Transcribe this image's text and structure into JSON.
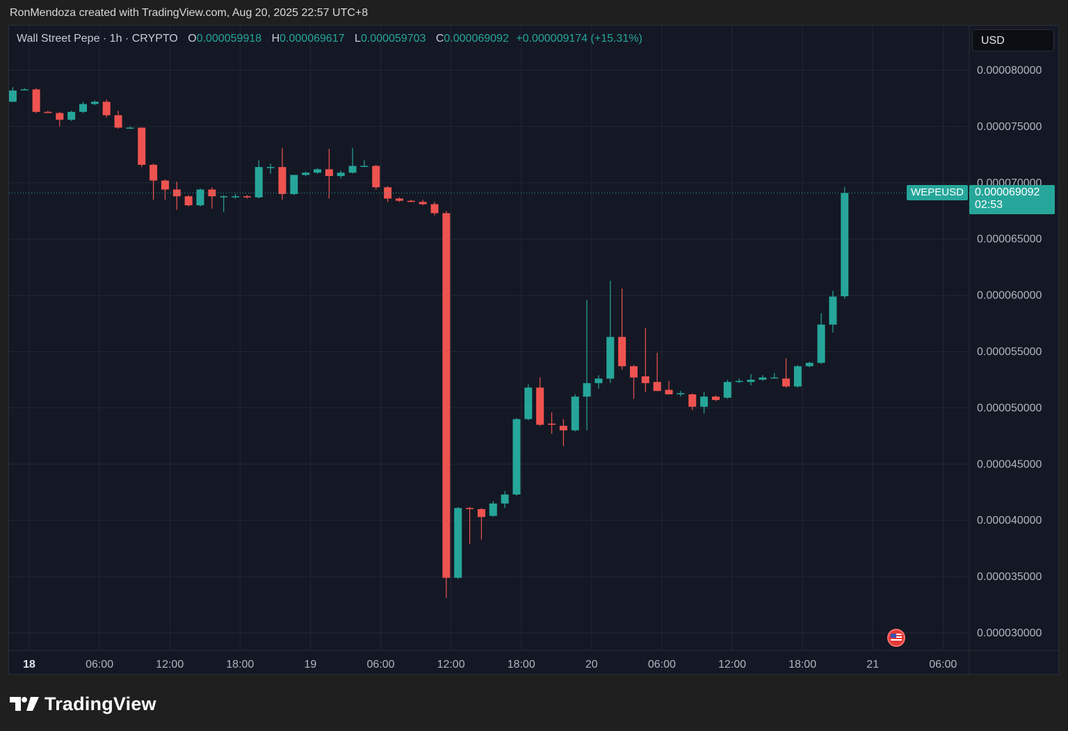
{
  "credit": "RonMendoza created with TradingView.com, Aug 20, 2025 22:57 UTC+8",
  "legend": {
    "symbol_text": "Wall Street Pepe · 1h · CRYPTO",
    "open_label": "O",
    "open": "0.000059918",
    "high_label": "H",
    "high": "0.000069617",
    "low_label": "L",
    "low": "0.000059703",
    "close_label": "C",
    "close": "0.000069092",
    "change": "+0.000009174 (+15.31%)"
  },
  "currency": "USD",
  "last_price": {
    "symbol": "WEPEUSD",
    "price": "0.000069092",
    "countdown": "02:53",
    "value": 6.9092e-05
  },
  "brand": "TradingView",
  "chart_data": {
    "type": "candlestick",
    "interval": "1h",
    "colors": {
      "up": "#26a69a",
      "down": "#ef5350",
      "background": "#141824",
      "grid": "#232734",
      "text": "#b2b5be"
    },
    "y_ticks": [
      3e-05,
      3.5e-05,
      4e-05,
      4.5e-05,
      5e-05,
      5.5e-05,
      6e-05,
      6.5e-05,
      7e-05,
      7.5e-05,
      8e-05
    ],
    "y_tick_labels": [
      "0.000030000",
      "0.000035000",
      "0.000040000",
      "0.000045000",
      "0.000050000",
      "0.000055000",
      "0.000060000",
      "0.000065000",
      "0.000070000",
      "0.000075000",
      "0.000080000"
    ],
    "ylim": [
      2.85e-05,
      8.38e-05
    ],
    "x_ticks": [
      {
        "label": "18",
        "hour": 0,
        "bold": true
      },
      {
        "label": "06:00",
        "hour": 6
      },
      {
        "label": "12:00",
        "hour": 12
      },
      {
        "label": "18:00",
        "hour": 18
      },
      {
        "label": "19",
        "hour": 24
      },
      {
        "label": "06:00",
        "hour": 30
      },
      {
        "label": "12:00",
        "hour": 36
      },
      {
        "label": "18:00",
        "hour": 42
      },
      {
        "label": "20",
        "hour": 48
      },
      {
        "label": "06:00",
        "hour": 54
      },
      {
        "label": "12:00",
        "hour": 60
      },
      {
        "label": "18:00",
        "hour": 66
      },
      {
        "label": "21",
        "hour": 72
      },
      {
        "label": "06:00",
        "hour": 78
      }
    ],
    "candles": [
      {
        "t": -1.4,
        "o": 7.72e-05,
        "h": 7.85e-05,
        "l": 7.72e-05,
        "c": 7.82e-05
      },
      {
        "t": -0.4,
        "o": 7.83e-05,
        "h": 7.84e-05,
        "l": 7.82e-05,
        "c": 7.83e-05
      },
      {
        "t": 0.6,
        "o": 7.83e-05,
        "h": 7.84e-05,
        "l": 7.62e-05,
        "c": 7.63e-05
      },
      {
        "t": 1.6,
        "o": 7.63e-05,
        "h": 7.64e-05,
        "l": 7.62e-05,
        "c": 7.62e-05
      },
      {
        "t": 2.6,
        "o": 7.62e-05,
        "h": 7.63e-05,
        "l": 7.5e-05,
        "c": 7.56e-05
      },
      {
        "t": 3.6,
        "o": 7.56e-05,
        "h": 7.64e-05,
        "l": 7.55e-05,
        "c": 7.63e-05
      },
      {
        "t": 4.6,
        "o": 7.63e-05,
        "h": 7.72e-05,
        "l": 7.62e-05,
        "c": 7.7e-05
      },
      {
        "t": 5.6,
        "o": 7.7e-05,
        "h": 7.73e-05,
        "l": 7.69e-05,
        "c": 7.72e-05
      },
      {
        "t": 6.6,
        "o": 7.72e-05,
        "h": 7.74e-05,
        "l": 7.58e-05,
        "c": 7.6e-05
      },
      {
        "t": 7.6,
        "o": 7.6e-05,
        "h": 7.64e-05,
        "l": 7.48e-05,
        "c": 7.49e-05
      },
      {
        "t": 8.6,
        "o": 7.49e-05,
        "h": 7.5e-05,
        "l": 7.48e-05,
        "c": 7.49e-05
      },
      {
        "t": 9.6,
        "o": 7.49e-05,
        "h": 7.49e-05,
        "l": 7.14e-05,
        "c": 7.16e-05
      },
      {
        "t": 10.6,
        "o": 7.16e-05,
        "h": 7.17e-05,
        "l": 6.85e-05,
        "c": 7.02e-05
      },
      {
        "t": 11.6,
        "o": 7.02e-05,
        "h": 7.03e-05,
        "l": 6.85e-05,
        "c": 6.94e-05
      },
      {
        "t": 12.6,
        "o": 6.94e-05,
        "h": 7.01e-05,
        "l": 6.76e-05,
        "c": 6.88e-05
      },
      {
        "t": 13.6,
        "o": 6.88e-05,
        "h": 6.89e-05,
        "l": 6.79e-05,
        "c": 6.8e-05
      },
      {
        "t": 14.6,
        "o": 6.8e-05,
        "h": 6.95e-05,
        "l": 6.79e-05,
        "c": 6.94e-05
      },
      {
        "t": 15.6,
        "o": 6.94e-05,
        "h": 6.96e-05,
        "l": 6.77e-05,
        "c": 6.88e-05
      },
      {
        "t": 16.6,
        "o": 6.88e-05,
        "h": 6.89e-05,
        "l": 6.74e-05,
        "c": 6.88e-05
      },
      {
        "t": 17.6,
        "o": 6.88e-05,
        "h": 6.9e-05,
        "l": 6.86e-05,
        "c": 6.88e-05
      },
      {
        "t": 18.6,
        "o": 6.88e-05,
        "h": 6.89e-05,
        "l": 6.86e-05,
        "c": 6.87e-05
      },
      {
        "t": 19.6,
        "o": 6.87e-05,
        "h": 7.2e-05,
        "l": 6.86e-05,
        "c": 7.14e-05
      },
      {
        "t": 20.6,
        "o": 7.14e-05,
        "h": 7.17e-05,
        "l": 7.08e-05,
        "c": 7.14e-05
      },
      {
        "t": 21.6,
        "o": 7.14e-05,
        "h": 7.31e-05,
        "l": 6.85e-05,
        "c": 6.9e-05
      },
      {
        "t": 22.6,
        "o": 6.9e-05,
        "h": 7.07e-05,
        "l": 6.89e-05,
        "c": 7.07e-05
      },
      {
        "t": 23.6,
        "o": 7.07e-05,
        "h": 7.1e-05,
        "l": 7.06e-05,
        "c": 7.09e-05
      },
      {
        "t": 24.6,
        "o": 7.09e-05,
        "h": 7.13e-05,
        "l": 7.08e-05,
        "c": 7.12e-05
      },
      {
        "t": 25.6,
        "o": 7.12e-05,
        "h": 7.3e-05,
        "l": 6.86e-05,
        "c": 7.06e-05
      },
      {
        "t": 26.6,
        "o": 7.06e-05,
        "h": 7.11e-05,
        "l": 7.04e-05,
        "c": 7.09e-05
      },
      {
        "t": 27.6,
        "o": 7.09e-05,
        "h": 7.31e-05,
        "l": 7.08e-05,
        "c": 7.15e-05
      },
      {
        "t": 28.6,
        "o": 7.15e-05,
        "h": 7.2e-05,
        "l": 7.14e-05,
        "c": 7.15e-05
      },
      {
        "t": 29.6,
        "o": 7.15e-05,
        "h": 7.16e-05,
        "l": 6.94e-05,
        "c": 6.96e-05
      },
      {
        "t": 30.6,
        "o": 6.96e-05,
        "h": 6.97e-05,
        "l": 6.83e-05,
        "c": 6.86e-05
      },
      {
        "t": 31.6,
        "o": 6.86e-05,
        "h": 6.87e-05,
        "l": 6.83e-05,
        "c": 6.84e-05
      },
      {
        "t": 32.6,
        "o": 6.84e-05,
        "h": 6.85e-05,
        "l": 6.83e-05,
        "c": 6.83e-05
      },
      {
        "t": 33.6,
        "o": 6.83e-05,
        "h": 6.85e-05,
        "l": 6.8e-05,
        "c": 6.81e-05
      },
      {
        "t": 34.6,
        "o": 6.81e-05,
        "h": 6.83e-05,
        "l": 6.71e-05,
        "c": 6.73e-05
      },
      {
        "t": 35.6,
        "o": 6.73e-05,
        "h": 6.75e-05,
        "l": 3.31e-05,
        "c": 3.49e-05
      },
      {
        "t": 36.6,
        "o": 3.49e-05,
        "h": 4.12e-05,
        "l": 3.48e-05,
        "c": 4.11e-05
      },
      {
        "t": 37.6,
        "o": 4.11e-05,
        "h": 4.12e-05,
        "l": 3.79e-05,
        "c": 4.1e-05
      },
      {
        "t": 38.6,
        "o": 4.1e-05,
        "h": 4.11e-05,
        "l": 3.83e-05,
        "c": 4.03e-05
      },
      {
        "t": 39.6,
        "o": 4.04e-05,
        "h": 4.17e-05,
        "l": 4.03e-05,
        "c": 4.15e-05
      },
      {
        "t": 40.6,
        "o": 4.15e-05,
        "h": 4.26e-05,
        "l": 4.11e-05,
        "c": 4.23e-05
      },
      {
        "t": 41.6,
        "o": 4.23e-05,
        "h": 4.91e-05,
        "l": 4.22e-05,
        "c": 4.9e-05
      },
      {
        "t": 42.6,
        "o": 4.9e-05,
        "h": 5.21e-05,
        "l": 4.89e-05,
        "c": 5.18e-05
      },
      {
        "t": 43.6,
        "o": 5.18e-05,
        "h": 5.27e-05,
        "l": 4.84e-05,
        "c": 4.85e-05
      },
      {
        "t": 44.6,
        "o": 4.86e-05,
        "h": 4.96e-05,
        "l": 4.77e-05,
        "c": 4.85e-05
      },
      {
        "t": 45.6,
        "o": 4.84e-05,
        "h": 4.9e-05,
        "l": 4.66e-05,
        "c": 4.8e-05
      },
      {
        "t": 46.6,
        "o": 4.8e-05,
        "h": 5.12e-05,
        "l": 4.79e-05,
        "c": 5.1e-05
      },
      {
        "t": 47.6,
        "o": 5.1e-05,
        "h": 5.96e-05,
        "l": 4.8e-05,
        "c": 5.22e-05
      },
      {
        "t": 48.6,
        "o": 5.22e-05,
        "h": 5.29e-05,
        "l": 5.17e-05,
        "c": 5.26e-05
      },
      {
        "t": 49.6,
        "o": 5.26e-05,
        "h": 6.13e-05,
        "l": 5.22e-05,
        "c": 5.63e-05
      },
      {
        "t": 50.6,
        "o": 5.63e-05,
        "h": 6.06e-05,
        "l": 5.34e-05,
        "c": 5.37e-05
      },
      {
        "t": 51.6,
        "o": 5.37e-05,
        "h": 5.38e-05,
        "l": 5.08e-05,
        "c": 5.27e-05
      },
      {
        "t": 52.6,
        "o": 5.28e-05,
        "h": 5.71e-05,
        "l": 5.14e-05,
        "c": 5.22e-05
      },
      {
        "t": 53.6,
        "o": 5.23e-05,
        "h": 5.49e-05,
        "l": 5.15e-05,
        "c": 5.15e-05
      },
      {
        "t": 54.6,
        "o": 5.16e-05,
        "h": 5.24e-05,
        "l": 5.12e-05,
        "c": 5.12e-05
      },
      {
        "t": 55.6,
        "o": 5.12e-05,
        "h": 5.15e-05,
        "l": 5.1e-05,
        "c": 5.13e-05
      },
      {
        "t": 56.6,
        "o": 5.12e-05,
        "h": 5.13e-05,
        "l": 4.98e-05,
        "c": 5.01e-05
      },
      {
        "t": 57.6,
        "o": 5.01e-05,
        "h": 5.14e-05,
        "l": 4.95e-05,
        "c": 5.1e-05
      },
      {
        "t": 58.6,
        "o": 5.1e-05,
        "h": 5.11e-05,
        "l": 5.06e-05,
        "c": 5.07e-05
      },
      {
        "t": 59.6,
        "o": 5.09e-05,
        "h": 5.25e-05,
        "l": 5.08e-05,
        "c": 5.23e-05
      },
      {
        "t": 60.6,
        "o": 5.23e-05,
        "h": 5.26e-05,
        "l": 5.22e-05,
        "c": 5.24e-05
      },
      {
        "t": 61.6,
        "o": 5.23e-05,
        "h": 5.3e-05,
        "l": 5.2e-05,
        "c": 5.25e-05
      },
      {
        "t": 62.6,
        "o": 5.25e-05,
        "h": 5.29e-05,
        "l": 5.24e-05,
        "c": 5.27e-05
      },
      {
        "t": 63.6,
        "o": 5.27e-05,
        "h": 5.31e-05,
        "l": 5.26e-05,
        "c": 5.27e-05
      },
      {
        "t": 64.6,
        "o": 5.26e-05,
        "h": 5.44e-05,
        "l": 5.18e-05,
        "c": 5.19e-05
      },
      {
        "t": 65.6,
        "o": 5.19e-05,
        "h": 5.38e-05,
        "l": 5.18e-05,
        "c": 5.37e-05
      },
      {
        "t": 66.6,
        "o": 5.37e-05,
        "h": 5.41e-05,
        "l": 5.36e-05,
        "c": 5.4e-05
      },
      {
        "t": 67.6,
        "o": 5.4e-05,
        "h": 5.84e-05,
        "l": 5.39e-05,
        "c": 5.74e-05
      },
      {
        "t": 68.6,
        "o": 5.74e-05,
        "h": 6.04e-05,
        "l": 5.67e-05,
        "c": 5.989e-05
      },
      {
        "t": 69.6,
        "o": 5.9918e-05,
        "h": 6.9617e-05,
        "l": 5.9703e-05,
        "c": 6.9092e-05
      }
    ]
  }
}
